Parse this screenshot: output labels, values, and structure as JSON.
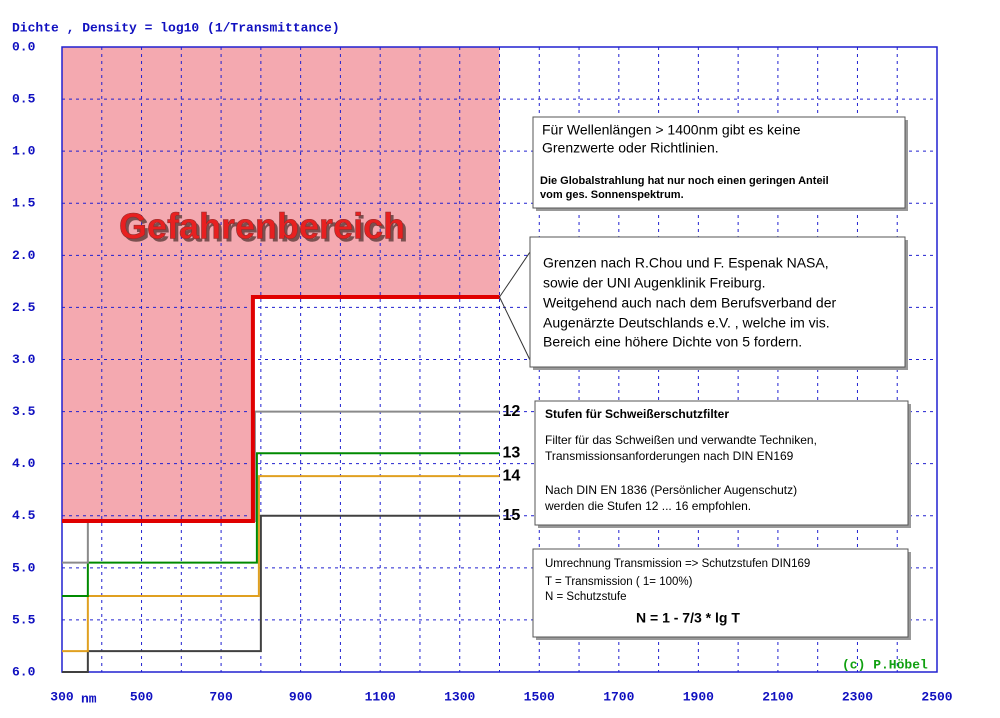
{
  "chart_data": {
    "type": "step",
    "y_label": "Dichte , Density = log10 (1/Transmittance)",
    "x_unit": "nm",
    "xlim": [
      300,
      2500
    ],
    "xticks": [
      300,
      500,
      700,
      900,
      1100,
      1300,
      1500,
      1700,
      1900,
      2100,
      2300,
      2500
    ],
    "ylim": [
      0,
      6
    ],
    "yticks": [
      {
        "value": 0,
        "label": "0.0"
      },
      0.5,
      {
        "value": 1,
        "label": "1.0"
      },
      1.5,
      {
        "value": 2,
        "label": "2.0"
      },
      2.5,
      {
        "value": 3,
        "label": "3.0"
      },
      3.5,
      {
        "value": 4,
        "label": "4.0"
      },
      4.5,
      {
        "value": 5,
        "label": "5.0"
      },
      5.5,
      {
        "value": 6,
        "label": "6.0"
      }
    ],
    "y_inverted": true,
    "grid": true,
    "danger_label": "Gefahrenbereich",
    "danger_color": "#f4a9b0",
    "series": [
      {
        "color": "#e00000",
        "x": [
          300,
          780,
          780,
          1400
        ],
        "values": [
          4.55,
          4.55,
          2.4,
          2.4
        ]
      },
      {
        "name": "12",
        "color": "#8a8a8a",
        "x": [
          300,
          365,
          365,
          785,
          785,
          1400
        ],
        "values": [
          4.95,
          4.95,
          4.55,
          4.55,
          3.5,
          3.5
        ]
      },
      {
        "name": "13",
        "color": "#008a00",
        "x": [
          300,
          365,
          365,
          790,
          790,
          1400
        ],
        "values": [
          5.27,
          5.27,
          4.95,
          4.95,
          3.9,
          3.9
        ]
      },
      {
        "name": "14",
        "color": "#e0a020",
        "x": [
          300,
          365,
          365,
          795,
          795,
          1400
        ],
        "values": [
          5.8,
          5.8,
          5.27,
          5.27,
          4.12,
          4.12
        ]
      },
      {
        "name": "15",
        "color": "#404040",
        "x": [
          300,
          365,
          365,
          800,
          800,
          1400
        ],
        "values": [
          6.0,
          6.0,
          5.8,
          5.8,
          4.5,
          4.5
        ]
      }
    ],
    "notes": [
      [
        "Für Wellenlängen > 1400nm gibt es keine",
        "Grenzwerte oder Richtlinien.",
        "Die Globalstrahlung hat nur noch einen geringen Anteil",
        "vom ges. Sonnenspektrum."
      ],
      [
        "Grenzen nach R.Chou und F. Espenak NASA,",
        "sowie der UNI Augenklinik Freiburg.",
        "Weitgehend auch nach dem Berufsverband der",
        "Augenärzte Deutschlands e.V. , welche im vis.",
        "Bereich eine höhere Dichte von 5 fordern."
      ],
      [
        "Stufen für Schweißerschutzfilter",
        "Filter für das Schweißen und verwandte Techniken,",
        "Transmissionsanforderungen nach DIN EN169",
        "Nach DIN EN 1836 (Persönlicher Augenschutz)",
        "werden die Stufen 12 ... 16  empfohlen."
      ],
      [
        "Umrechnung Transmission => Schutzstufen DIN169",
        "T = Transmission ( 1= 100%)",
        "N = Schutzstufe",
        "N = 1 - 7/3 * lg T"
      ]
    ],
    "copyright": "(c) P.Höbel"
  }
}
